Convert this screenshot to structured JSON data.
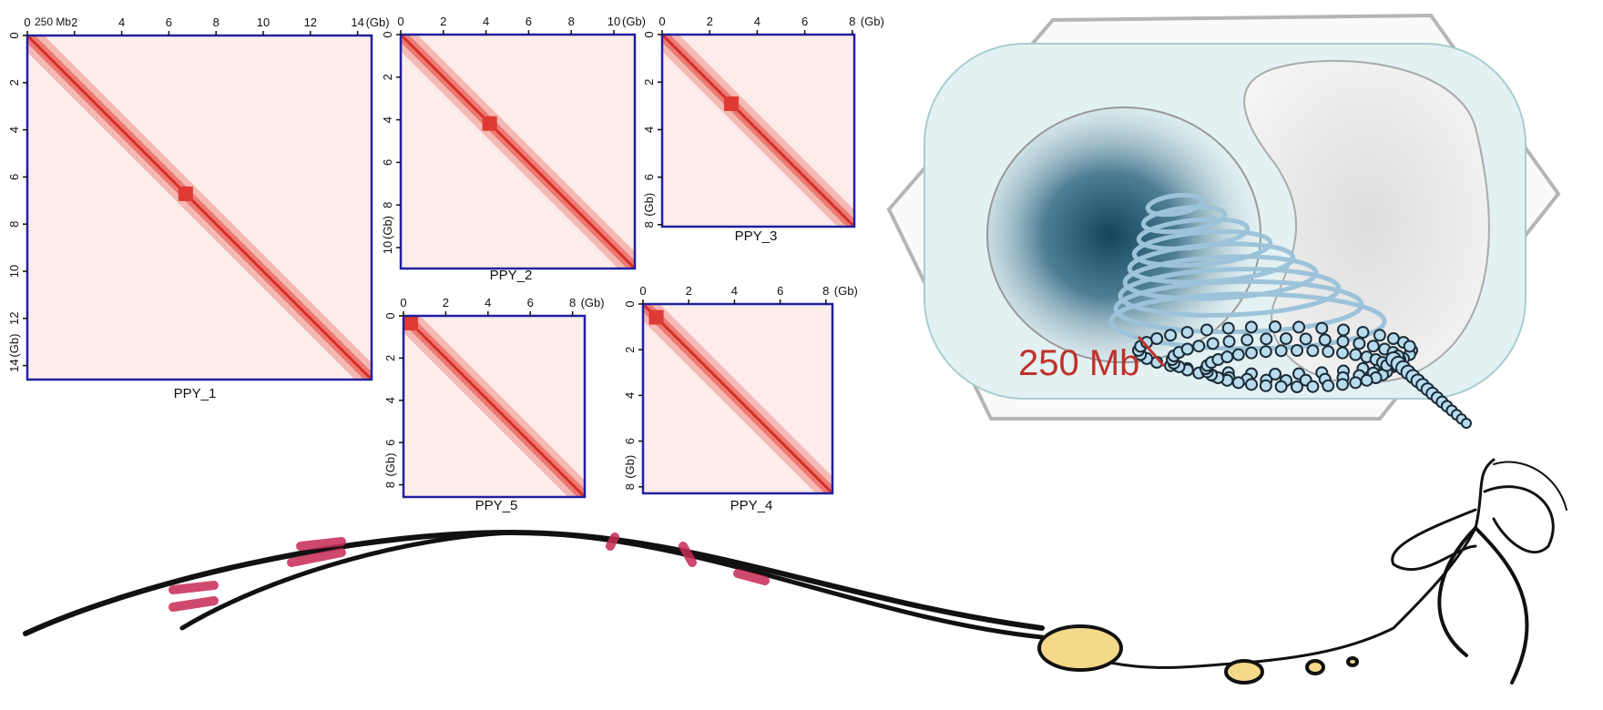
{
  "annotations": {
    "scale_bar": "250 Mb",
    "illustration_label": "250 Mb"
  },
  "panels": [
    {
      "name": "PPY_1",
      "xticks": [
        0,
        2,
        4,
        6,
        8,
        10,
        12,
        14
      ],
      "yticks": [
        0,
        2,
        4,
        6,
        8,
        10,
        12,
        14
      ],
      "x_unit": "(Gb)",
      "y_unit": "(Gb)"
    },
    {
      "name": "PPY_2",
      "xticks": [
        0,
        2,
        4,
        6,
        8,
        10
      ],
      "yticks": [
        0,
        2,
        4,
        6,
        8,
        10
      ],
      "x_unit": "(Gb)",
      "y_unit": "(Gb)"
    },
    {
      "name": "PPY_3",
      "xticks": [
        0,
        2,
        4,
        6,
        8
      ],
      "yticks": [
        0,
        2,
        4,
        6,
        8
      ],
      "x_unit": "(Gb)",
      "y_unit": "(Gb)"
    },
    {
      "name": "PPY_5",
      "xticks": [
        0,
        2,
        4,
        6,
        8
      ],
      "yticks": [
        0,
        2,
        4,
        6,
        8
      ],
      "x_unit": "(Gb)",
      "y_unit": "(Gb)"
    },
    {
      "name": "PPY_4",
      "xticks": [
        0,
        2,
        4,
        6,
        8
      ],
      "yticks": [
        0,
        2,
        4,
        6,
        8
      ],
      "x_unit": "(Gb)",
      "y_unit": "(Gb)"
    }
  ]
}
